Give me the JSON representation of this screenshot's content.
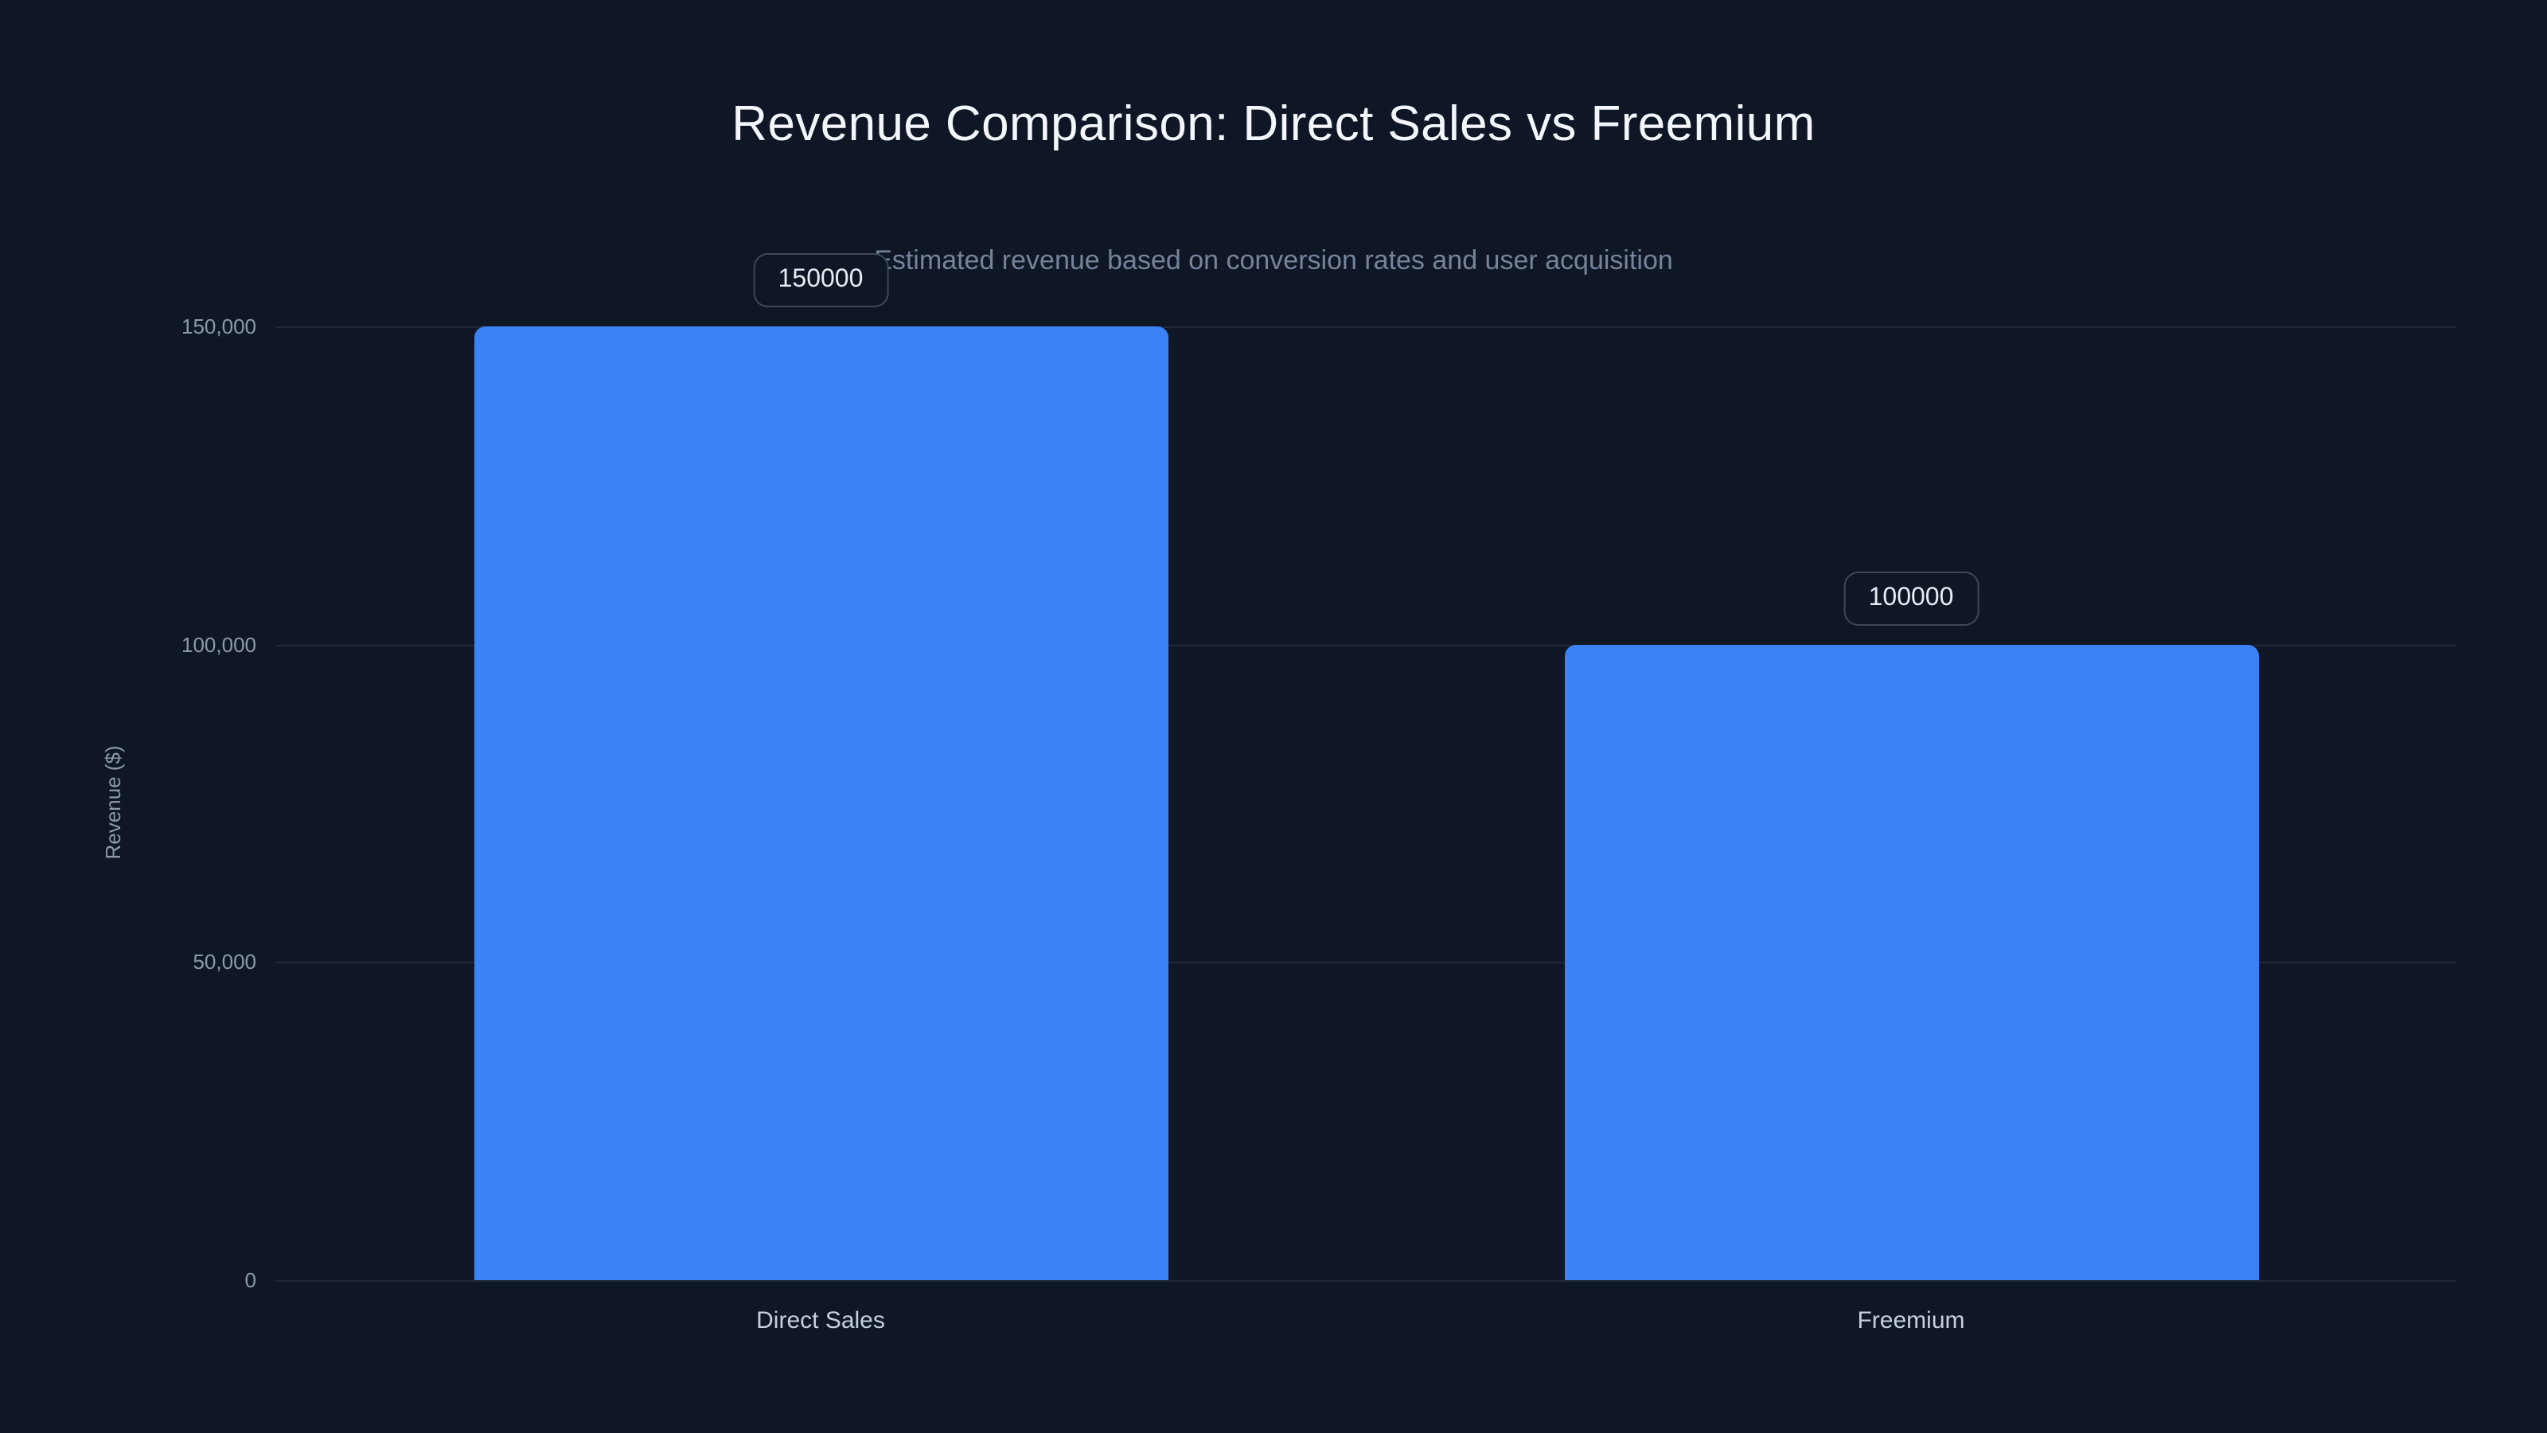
{
  "page": {
    "background_color": "#0f1726"
  },
  "chart_data": {
    "type": "bar",
    "title": "Revenue Comparison: Direct Sales vs Freemium",
    "subtitle": "Estimated revenue based on conversion rates and user acquisition",
    "xlabel": "",
    "ylabel": "Revenue ($)",
    "categories": [
      "Direct Sales",
      "Freemium"
    ],
    "values": [
      150000,
      100000
    ],
    "value_labels": [
      "150000",
      "100000"
    ],
    "yticks": [
      {
        "value": 0,
        "label": "0"
      },
      {
        "value": 50000,
        "label": "50,000"
      },
      {
        "value": 100000,
        "label": "100,000"
      },
      {
        "value": 150000,
        "label": "150,000"
      }
    ],
    "ylim": [
      0,
      150000
    ],
    "grid": true,
    "legend_position": "none",
    "bar_color": "#3b82f6",
    "background_color": "#0f1726"
  }
}
